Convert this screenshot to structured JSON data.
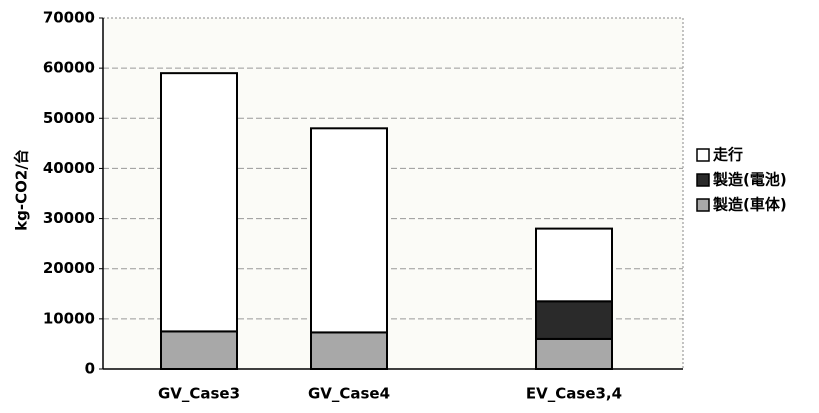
{
  "chart_data": {
    "type": "bar",
    "stacked": true,
    "y_label": "kg-CO2/台",
    "categories": [
      "GV_Case3",
      "GV_Case4",
      "EV_Case3,4"
    ],
    "series": [
      {
        "name": "製造(車体)",
        "color": "#a8a8a8",
        "values": [
          7500,
          7300,
          6000
        ]
      },
      {
        "name": "製造(電池)",
        "color": "#2a2a2a",
        "values": [
          0,
          0,
          7500
        ]
      },
      {
        "name": "走行",
        "color": "#ffffff",
        "values": [
          51500,
          40700,
          14500
        ]
      }
    ],
    "ylim": [
      0,
      70000
    ],
    "yticks": [
      0,
      10000,
      20000,
      30000,
      40000,
      50000,
      60000,
      70000
    ],
    "grid": true,
    "legend": "right"
  }
}
